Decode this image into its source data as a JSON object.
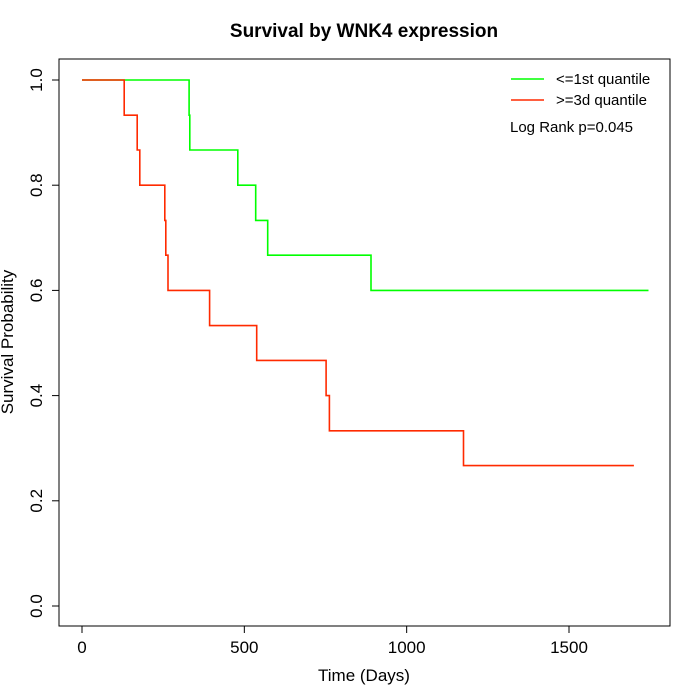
{
  "chart_data": {
    "type": "line",
    "title": "Survival by WNK4 expression",
    "xlabel": "Time (Days)",
    "ylabel": "Survival Probability",
    "xlim": [
      0,
      1750
    ],
    "ylim": [
      0,
      1
    ],
    "x_ticks": [
      "0",
      "500",
      "1000",
      "1500"
    ],
    "y_ticks": [
      "0.0",
      "0.2",
      "0.4",
      "0.6",
      "0.8",
      "1.0"
    ],
    "annotation": "Log Rank p=0.045",
    "legend_position": "top-right",
    "grid": false,
    "series": [
      {
        "name": "<=1st quantile",
        "color": "#00ff00",
        "step": true,
        "points": [
          [
            0,
            1.0
          ],
          [
            330,
            1.0
          ],
          [
            330,
            0.933
          ],
          [
            332,
            0.933
          ],
          [
            332,
            0.867
          ],
          [
            480,
            0.867
          ],
          [
            480,
            0.8
          ],
          [
            535,
            0.8
          ],
          [
            535,
            0.733
          ],
          [
            572,
            0.733
          ],
          [
            572,
            0.667
          ],
          [
            890,
            0.667
          ],
          [
            890,
            0.6
          ],
          [
            1745,
            0.6
          ]
        ]
      },
      {
        "name": ">=3d quantile",
        "color": "#ff2a00",
        "step": true,
        "points": [
          [
            0,
            1.0
          ],
          [
            130,
            1.0
          ],
          [
            130,
            0.933
          ],
          [
            170,
            0.933
          ],
          [
            170,
            0.867
          ],
          [
            178,
            0.867
          ],
          [
            178,
            0.8
          ],
          [
            255,
            0.8
          ],
          [
            255,
            0.733
          ],
          [
            258,
            0.733
          ],
          [
            258,
            0.667
          ],
          [
            265,
            0.667
          ],
          [
            265,
            0.6
          ],
          [
            393,
            0.6
          ],
          [
            393,
            0.533
          ],
          [
            538,
            0.533
          ],
          [
            538,
            0.467
          ],
          [
            752,
            0.467
          ],
          [
            752,
            0.4
          ],
          [
            762,
            0.4
          ],
          [
            762,
            0.333
          ],
          [
            1175,
            0.333
          ],
          [
            1175,
            0.267
          ],
          [
            1700,
            0.267
          ]
        ]
      }
    ]
  }
}
